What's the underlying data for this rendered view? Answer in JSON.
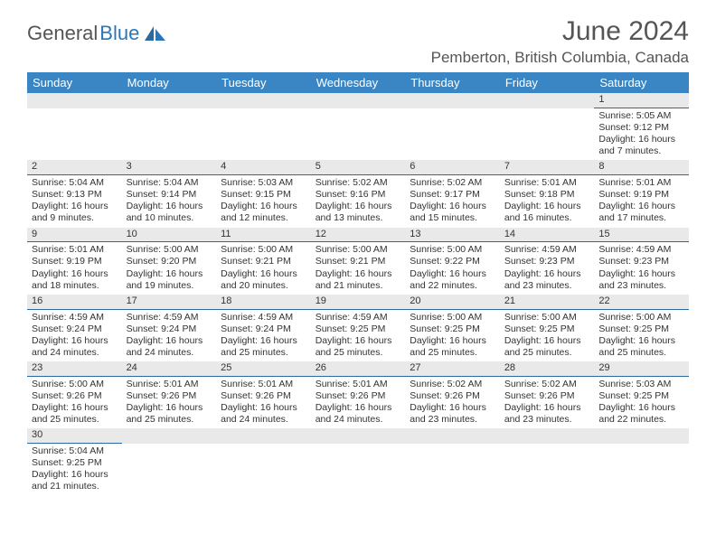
{
  "logo": {
    "text1": "General",
    "text2": "Blue"
  },
  "title": "June 2024",
  "location": "Pemberton, British Columbia, Canada",
  "colors": {
    "header_bg": "#3a86c5",
    "header_text": "#ffffff",
    "daynum_bg": "#e9e9e9",
    "daynum_border": "#2a6aa0",
    "body_text": "#333333",
    "title_text": "#555555",
    "logo_blue": "#2a77b8"
  },
  "weekdays": [
    "Sunday",
    "Monday",
    "Tuesday",
    "Wednesday",
    "Thursday",
    "Friday",
    "Saturday"
  ],
  "weeks": [
    [
      null,
      null,
      null,
      null,
      null,
      null,
      {
        "d": "1",
        "sunrise": "5:05 AM",
        "sunset": "9:12 PM",
        "dl1": "Daylight: 16 hours",
        "dl2": "and 7 minutes."
      }
    ],
    [
      {
        "d": "2",
        "sunrise": "5:04 AM",
        "sunset": "9:13 PM",
        "dl1": "Daylight: 16 hours",
        "dl2": "and 9 minutes."
      },
      {
        "d": "3",
        "sunrise": "5:04 AM",
        "sunset": "9:14 PM",
        "dl1": "Daylight: 16 hours",
        "dl2": "and 10 minutes."
      },
      {
        "d": "4",
        "sunrise": "5:03 AM",
        "sunset": "9:15 PM",
        "dl1": "Daylight: 16 hours",
        "dl2": "and 12 minutes."
      },
      {
        "d": "5",
        "sunrise": "5:02 AM",
        "sunset": "9:16 PM",
        "dl1": "Daylight: 16 hours",
        "dl2": "and 13 minutes."
      },
      {
        "d": "6",
        "sunrise": "5:02 AM",
        "sunset": "9:17 PM",
        "dl1": "Daylight: 16 hours",
        "dl2": "and 15 minutes."
      },
      {
        "d": "7",
        "sunrise": "5:01 AM",
        "sunset": "9:18 PM",
        "dl1": "Daylight: 16 hours",
        "dl2": "and 16 minutes."
      },
      {
        "d": "8",
        "sunrise": "5:01 AM",
        "sunset": "9:19 PM",
        "dl1": "Daylight: 16 hours",
        "dl2": "and 17 minutes."
      }
    ],
    [
      {
        "d": "9",
        "sunrise": "5:01 AM",
        "sunset": "9:19 PM",
        "dl1": "Daylight: 16 hours",
        "dl2": "and 18 minutes."
      },
      {
        "d": "10",
        "sunrise": "5:00 AM",
        "sunset": "9:20 PM",
        "dl1": "Daylight: 16 hours",
        "dl2": "and 19 minutes."
      },
      {
        "d": "11",
        "sunrise": "5:00 AM",
        "sunset": "9:21 PM",
        "dl1": "Daylight: 16 hours",
        "dl2": "and 20 minutes."
      },
      {
        "d": "12",
        "sunrise": "5:00 AM",
        "sunset": "9:21 PM",
        "dl1": "Daylight: 16 hours",
        "dl2": "and 21 minutes."
      },
      {
        "d": "13",
        "sunrise": "5:00 AM",
        "sunset": "9:22 PM",
        "dl1": "Daylight: 16 hours",
        "dl2": "and 22 minutes."
      },
      {
        "d": "14",
        "sunrise": "4:59 AM",
        "sunset": "9:23 PM",
        "dl1": "Daylight: 16 hours",
        "dl2": "and 23 minutes."
      },
      {
        "d": "15",
        "sunrise": "4:59 AM",
        "sunset": "9:23 PM",
        "dl1": "Daylight: 16 hours",
        "dl2": "and 23 minutes."
      }
    ],
    [
      {
        "d": "16",
        "sunrise": "4:59 AM",
        "sunset": "9:24 PM",
        "dl1": "Daylight: 16 hours",
        "dl2": "and 24 minutes."
      },
      {
        "d": "17",
        "sunrise": "4:59 AM",
        "sunset": "9:24 PM",
        "dl1": "Daylight: 16 hours",
        "dl2": "and 24 minutes."
      },
      {
        "d": "18",
        "sunrise": "4:59 AM",
        "sunset": "9:24 PM",
        "dl1": "Daylight: 16 hours",
        "dl2": "and 25 minutes."
      },
      {
        "d": "19",
        "sunrise": "4:59 AM",
        "sunset": "9:25 PM",
        "dl1": "Daylight: 16 hours",
        "dl2": "and 25 minutes."
      },
      {
        "d": "20",
        "sunrise": "5:00 AM",
        "sunset": "9:25 PM",
        "dl1": "Daylight: 16 hours",
        "dl2": "and 25 minutes."
      },
      {
        "d": "21",
        "sunrise": "5:00 AM",
        "sunset": "9:25 PM",
        "dl1": "Daylight: 16 hours",
        "dl2": "and 25 minutes."
      },
      {
        "d": "22",
        "sunrise": "5:00 AM",
        "sunset": "9:25 PM",
        "dl1": "Daylight: 16 hours",
        "dl2": "and 25 minutes."
      }
    ],
    [
      {
        "d": "23",
        "sunrise": "5:00 AM",
        "sunset": "9:26 PM",
        "dl1": "Daylight: 16 hours",
        "dl2": "and 25 minutes."
      },
      {
        "d": "24",
        "sunrise": "5:01 AM",
        "sunset": "9:26 PM",
        "dl1": "Daylight: 16 hours",
        "dl2": "and 25 minutes."
      },
      {
        "d": "25",
        "sunrise": "5:01 AM",
        "sunset": "9:26 PM",
        "dl1": "Daylight: 16 hours",
        "dl2": "and 24 minutes."
      },
      {
        "d": "26",
        "sunrise": "5:01 AM",
        "sunset": "9:26 PM",
        "dl1": "Daylight: 16 hours",
        "dl2": "and 24 minutes."
      },
      {
        "d": "27",
        "sunrise": "5:02 AM",
        "sunset": "9:26 PM",
        "dl1": "Daylight: 16 hours",
        "dl2": "and 23 minutes."
      },
      {
        "d": "28",
        "sunrise": "5:02 AM",
        "sunset": "9:26 PM",
        "dl1": "Daylight: 16 hours",
        "dl2": "and 23 minutes."
      },
      {
        "d": "29",
        "sunrise": "5:03 AM",
        "sunset": "9:25 PM",
        "dl1": "Daylight: 16 hours",
        "dl2": "and 22 minutes."
      }
    ],
    [
      {
        "d": "30",
        "sunrise": "5:04 AM",
        "sunset": "9:25 PM",
        "dl1": "Daylight: 16 hours",
        "dl2": "and 21 minutes."
      },
      null,
      null,
      null,
      null,
      null,
      null
    ]
  ],
  "labels": {
    "sunrise_prefix": "Sunrise: ",
    "sunset_prefix": "Sunset: "
  }
}
